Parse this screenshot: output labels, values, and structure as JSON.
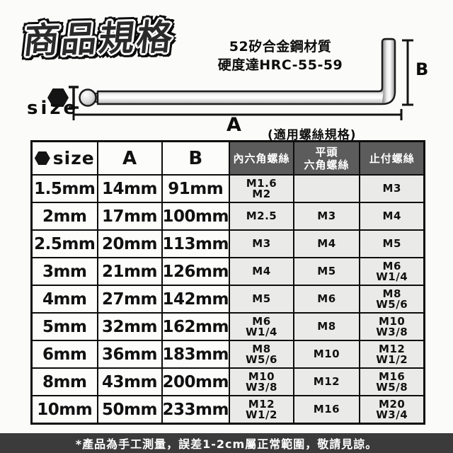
{
  "page": {
    "title": "商品規格",
    "material_line1": "52矽合金鋼材質",
    "material_line2": "硬度達HRC-55-59"
  },
  "diagram": {
    "size_label": "size",
    "a_label": "A",
    "b_label": "B",
    "caption": "(適用螺絲規格)"
  },
  "table": {
    "headers": [
      "size",
      "A",
      "B",
      "內六角螺絲",
      "平頭\n六角螺絲",
      "止付螺絲"
    ],
    "rows": [
      [
        "1.5mm",
        "14mm",
        "91mm",
        "M1.6\nM2",
        "",
        "M3"
      ],
      [
        "2mm",
        "17mm",
        "100mm",
        "M2.5",
        "M3",
        "M4"
      ],
      [
        "2.5mm",
        "20mm",
        "113mm",
        "M3",
        "M4",
        "M5"
      ],
      [
        "3mm",
        "21mm",
        "126mm",
        "M4",
        "M5",
        "M6\nW1/4"
      ],
      [
        "4mm",
        "27mm",
        "142mm",
        "M5",
        "M6",
        "M8\nW5/6"
      ],
      [
        "5mm",
        "32mm",
        "162mm",
        "M6\nW1/4",
        "M8",
        "M10\nW3/8"
      ],
      [
        "6mm",
        "36mm",
        "183mm",
        "M8\nW5/6",
        "M10",
        "M12\nW1/2"
      ],
      [
        "8mm",
        "43mm",
        "200mm",
        "M10\nW3/8",
        "M12",
        "M16\nW5/8"
      ],
      [
        "10mm",
        "50mm",
        "233mm",
        "M12\nW1/2",
        "M16",
        "M20\nW3/4"
      ]
    ]
  },
  "footer": {
    "note": "*產品為手工測量，誤差1-2cm屬正常範圍，敬請見諒。"
  },
  "colors": {
    "header_gray": "#5c5c5c",
    "cell_gray": "#eaeae8",
    "footer_bar": "#3b3b3b",
    "ink": "#0d0d0d"
  }
}
